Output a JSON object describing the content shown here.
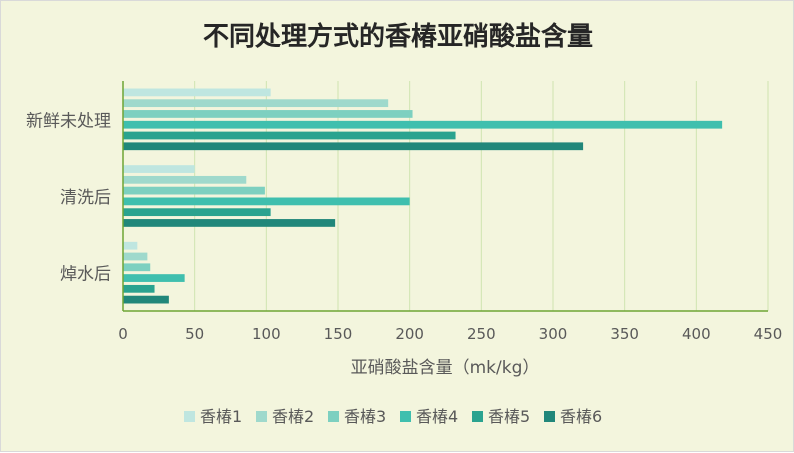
{
  "colors": {
    "background": "#f3f5dd",
    "gridline": "#cfe4b0",
    "axis": "#6ea535",
    "text": "#595959",
    "title": "#262626"
  },
  "chart_data": {
    "type": "bar",
    "orientation": "horizontal",
    "title": "不同处理方式的香椿亚硝酸盐含量",
    "xlabel": "亚硝酸盐含量（mk/kg）",
    "ylabel": "",
    "xlim": [
      0,
      450
    ],
    "ticks": [
      "0",
      "50",
      "100",
      "150",
      "200",
      "250",
      "300",
      "350",
      "400",
      "450"
    ],
    "grid": true,
    "legend_position": "bottom",
    "categories": [
      "新鲜未处理",
      "清洗后",
      "焯水后"
    ],
    "series": [
      {
        "name": "香椿1",
        "color": "#bfe6e0",
        "values": [
          103,
          50,
          10
        ]
      },
      {
        "name": "香椿2",
        "color": "#9fd9cc",
        "values": [
          185,
          86,
          17
        ]
      },
      {
        "name": "香椿3",
        "color": "#7dd0c0",
        "values": [
          202,
          99,
          19
        ]
      },
      {
        "name": "香椿4",
        "color": "#3fbfae",
        "values": [
          418,
          200,
          43
        ]
      },
      {
        "name": "香椿5",
        "color": "#2aa38f",
        "values": [
          232,
          103,
          22
        ]
      },
      {
        "name": "香椿6",
        "color": "#21877a",
        "values": [
          321,
          148,
          32
        ]
      }
    ]
  }
}
